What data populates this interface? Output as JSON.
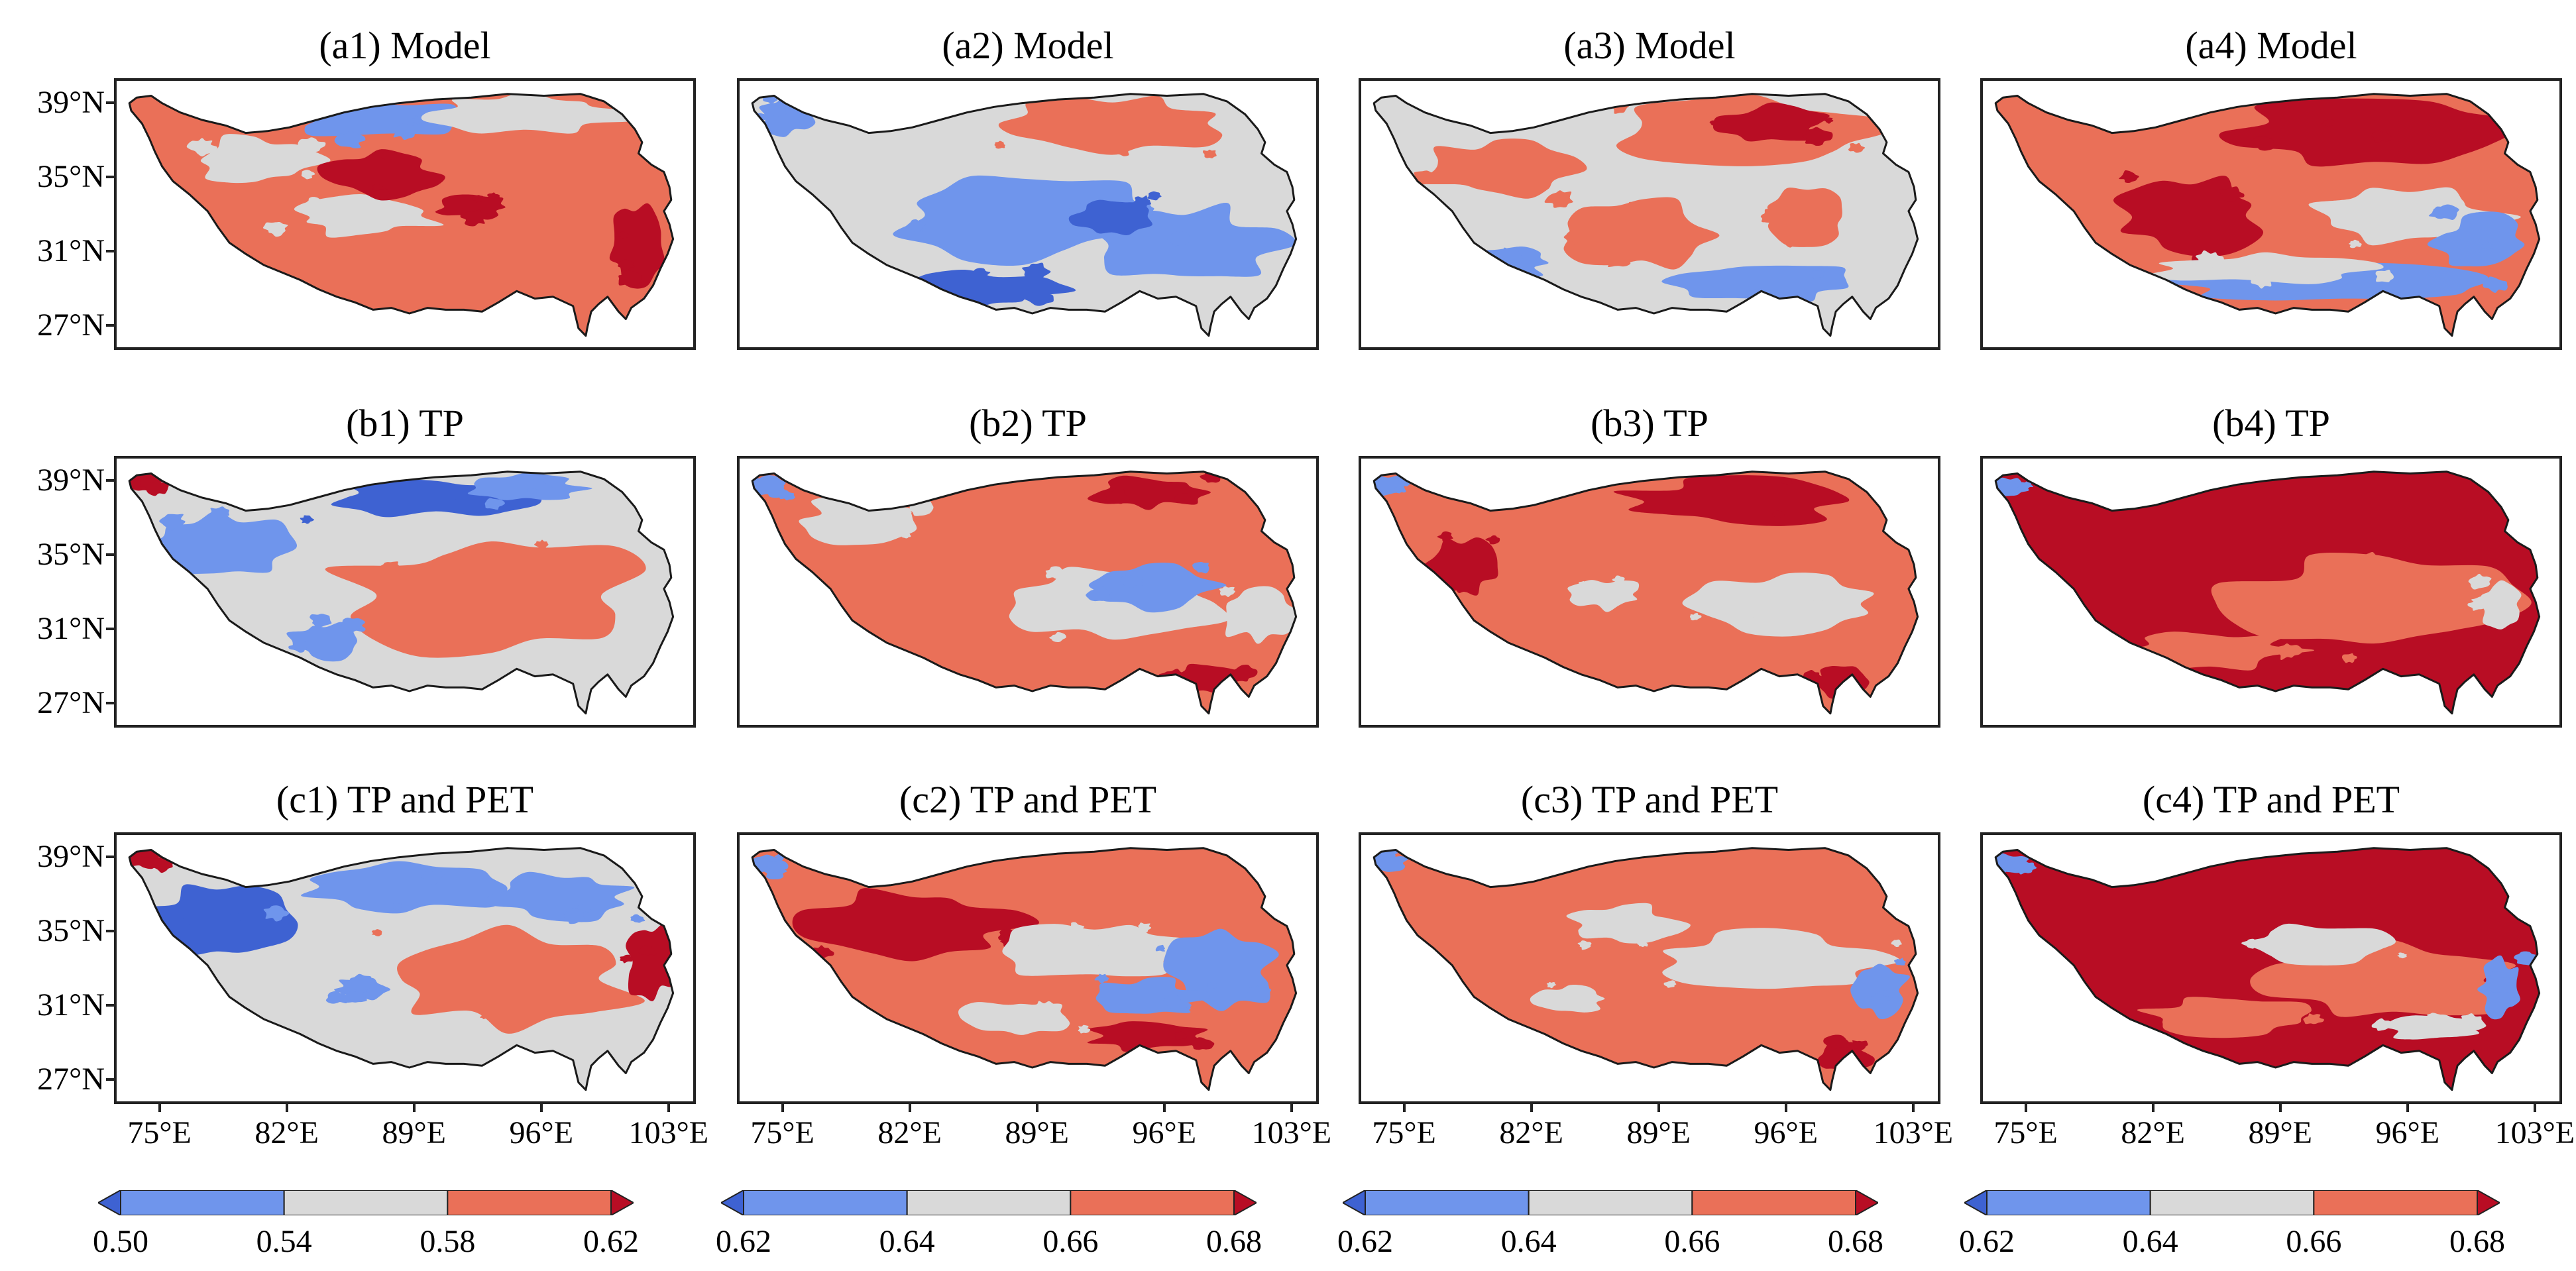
{
  "colors": {
    "class_1": "#3e62d2",
    "class_2": "#6f95ec",
    "class_3": "#d9d9d9",
    "class_4": "#ea7058",
    "class_5": "#b80d24"
  },
  "map_data": {
    "type": "categorical-choropleth",
    "lat_ticks": [
      "39°N",
      "35°N",
      "31°N",
      "27°N"
    ],
    "lon_ticks": [
      "75°E",
      "82°E",
      "89°E",
      "96°E",
      "103°E"
    ],
    "columns": [
      {
        "colorbar": {
          "ticks": [
            "0.50",
            "0.54",
            "0.58",
            "0.62"
          ],
          "extend": "both"
        }
      },
      {
        "colorbar": {
          "ticks": [
            "0.62",
            "0.64",
            "0.66",
            "0.68"
          ],
          "extend": "both"
        }
      },
      {
        "colorbar": {
          "ticks": [
            "0.62",
            "0.64",
            "0.66",
            "0.68"
          ],
          "extend": "both"
        }
      },
      {
        "colorbar": {
          "ticks": [
            "0.62",
            "0.64",
            "0.66",
            "0.68"
          ],
          "extend": "both"
        }
      }
    ],
    "panels": [
      {
        "title": "(a1) Model",
        "base": 4,
        "patches": [
          {
            "c": 2,
            "lon": 87,
            "lat": 38.2,
            "rx": 4.5,
            "ry": 1.0
          },
          {
            "c": 3,
            "lon": 95,
            "lat": 38.6,
            "rx": 5.5,
            "ry": 1.0
          },
          {
            "c": 3,
            "lon": 80,
            "lat": 36.0,
            "rx": 3.5,
            "ry": 1.3
          },
          {
            "c": 3,
            "lon": 86,
            "lat": 33.0,
            "rx": 4.0,
            "ry": 1.0
          },
          {
            "c": 5,
            "lon": 87,
            "lat": 35.2,
            "rx": 3.0,
            "ry": 1.2
          },
          {
            "c": 5,
            "lon": 101,
            "lat": 31.5,
            "rx": 1.5,
            "ry": 2.0
          },
          {
            "c": 5,
            "lon": 92,
            "lat": 33.5,
            "rx": 2.0,
            "ry": 0.6
          }
        ]
      },
      {
        "title": "(a2) Model",
        "base": 3,
        "patches": [
          {
            "c": 4,
            "lon": 93,
            "lat": 38.0,
            "rx": 6.0,
            "ry": 1.5
          },
          {
            "c": 2,
            "lon": 88,
            "lat": 33.0,
            "rx": 7.0,
            "ry": 2.3
          },
          {
            "c": 2,
            "lon": 97,
            "lat": 31.5,
            "rx": 5.0,
            "ry": 2.0
          },
          {
            "c": 1,
            "lon": 85,
            "lat": 29.0,
            "rx": 5.0,
            "ry": 1.0
          },
          {
            "c": 1,
            "lon": 93,
            "lat": 33.0,
            "rx": 2.0,
            "ry": 1.0
          },
          {
            "c": 2,
            "lon": 75,
            "lat": 38.5,
            "rx": 1.5,
            "ry": 1.0
          }
        ]
      },
      {
        "title": "(a3) Model",
        "base": 3,
        "patches": [
          {
            "c": 4,
            "lon": 94,
            "lat": 37.5,
            "rx": 8.0,
            "ry": 1.8
          },
          {
            "c": 5,
            "lon": 95,
            "lat": 38.0,
            "rx": 3.0,
            "ry": 1.0
          },
          {
            "c": 4,
            "lon": 80,
            "lat": 35.5,
            "rx": 4.0,
            "ry": 1.5
          },
          {
            "c": 4,
            "lon": 88,
            "lat": 32.0,
            "rx": 4.0,
            "ry": 1.8
          },
          {
            "c": 4,
            "lon": 97,
            "lat": 33.0,
            "rx": 2.5,
            "ry": 1.5
          },
          {
            "c": 2,
            "lon": 80,
            "lat": 30.5,
            "rx": 3.0,
            "ry": 0.8
          },
          {
            "c": 2,
            "lon": 95,
            "lat": 29.5,
            "rx": 5.0,
            "ry": 1.0
          }
        ]
      },
      {
        "title": "(a4) Model",
        "base": 4,
        "patches": [
          {
            "c": 5,
            "lon": 94,
            "lat": 37.5,
            "rx": 8.0,
            "ry": 1.8
          },
          {
            "c": 5,
            "lon": 84,
            "lat": 33.0,
            "rx": 4.0,
            "ry": 2.0
          },
          {
            "c": 3,
            "lon": 96,
            "lat": 33.0,
            "rx": 5.0,
            "ry": 1.5
          },
          {
            "c": 2,
            "lon": 92,
            "lat": 29.5,
            "rx": 9.0,
            "ry": 1.0
          },
          {
            "c": 3,
            "lon": 88,
            "lat": 30.2,
            "rx": 6.0,
            "ry": 0.8
          },
          {
            "c": 2,
            "lon": 100,
            "lat": 31.5,
            "rx": 2.5,
            "ry": 1.5
          }
        ]
      },
      {
        "title": "(b1) TP",
        "base": 3,
        "patches": [
          {
            "c": 1,
            "lon": 90,
            "lat": 38.2,
            "rx": 6.0,
            "ry": 1.0
          },
          {
            "c": 2,
            "lon": 78,
            "lat": 35.5,
            "rx": 4.0,
            "ry": 1.8
          },
          {
            "c": 2,
            "lon": 95,
            "lat": 38.7,
            "rx": 3.0,
            "ry": 0.7
          },
          {
            "c": 4,
            "lon": 93,
            "lat": 33.0,
            "rx": 8.0,
            "ry": 3.0
          },
          {
            "c": 2,
            "lon": 84,
            "lat": 30.5,
            "rx": 2.0,
            "ry": 1.0
          },
          {
            "c": 5,
            "lon": 74,
            "lat": 39.0,
            "rx": 1.0,
            "ry": 0.5
          }
        ]
      },
      {
        "title": "(b2) TP",
        "base": 4,
        "patches": [
          {
            "c": 3,
            "lon": 79,
            "lat": 37.0,
            "rx": 3.0,
            "ry": 1.2
          },
          {
            "c": 3,
            "lon": 93,
            "lat": 32.5,
            "rx": 6.0,
            "ry": 2.0
          },
          {
            "c": 2,
            "lon": 95,
            "lat": 33.5,
            "rx": 3.5,
            "ry": 1.2
          },
          {
            "c": 5,
            "lon": 95,
            "lat": 38.5,
            "rx": 3.0,
            "ry": 0.8
          },
          {
            "c": 5,
            "lon": 98,
            "lat": 28.5,
            "rx": 2.0,
            "ry": 0.8
          },
          {
            "c": 2,
            "lon": 74,
            "lat": 38.8,
            "rx": 1.0,
            "ry": 0.5
          },
          {
            "c": 3,
            "lon": 101,
            "lat": 32.0,
            "rx": 2.0,
            "ry": 1.5
          }
        ]
      },
      {
        "title": "(b3) TP",
        "base": 4,
        "patches": [
          {
            "c": 5,
            "lon": 93,
            "lat": 38.0,
            "rx": 6.0,
            "ry": 1.2
          },
          {
            "c": 3,
            "lon": 96,
            "lat": 32.5,
            "rx": 5.0,
            "ry": 1.5
          },
          {
            "c": 3,
            "lon": 86,
            "lat": 33.0,
            "rx": 2.0,
            "ry": 0.8
          },
          {
            "c": 5,
            "lon": 78,
            "lat": 34.5,
            "rx": 2.0,
            "ry": 1.5
          },
          {
            "c": 5,
            "lon": 99,
            "lat": 28.3,
            "rx": 1.5,
            "ry": 0.8
          },
          {
            "c": 2,
            "lon": 74,
            "lat": 38.8,
            "rx": 1.0,
            "ry": 0.5
          }
        ]
      },
      {
        "title": "(b4) TP",
        "base": 5,
        "patches": [
          {
            "c": 4,
            "lon": 94,
            "lat": 32.5,
            "rx": 8.0,
            "ry": 2.5
          },
          {
            "c": 4,
            "lon": 85,
            "lat": 30.0,
            "rx": 5.0,
            "ry": 1.0
          },
          {
            "c": 3,
            "lon": 101,
            "lat": 32.5,
            "rx": 1.2,
            "ry": 1.2
          },
          {
            "c": 2,
            "lon": 74,
            "lat": 38.8,
            "rx": 1.0,
            "ry": 0.5
          }
        ]
      },
      {
        "title": "(c1) TP and PET",
        "base": 3,
        "patches": [
          {
            "c": 1,
            "lon": 78,
            "lat": 35.5,
            "rx": 4.0,
            "ry": 2.0
          },
          {
            "c": 2,
            "lon": 88,
            "lat": 37.5,
            "rx": 6.0,
            "ry": 1.3
          },
          {
            "c": 2,
            "lon": 97,
            "lat": 37.0,
            "rx": 4.0,
            "ry": 1.2
          },
          {
            "c": 4,
            "lon": 94,
            "lat": 32.5,
            "rx": 7.0,
            "ry": 2.5
          },
          {
            "c": 5,
            "lon": 102,
            "lat": 33.5,
            "rx": 1.5,
            "ry": 2.0
          },
          {
            "c": 5,
            "lon": 74,
            "lat": 39.0,
            "rx": 1.0,
            "ry": 0.5
          },
          {
            "c": 2,
            "lon": 86,
            "lat": 32.0,
            "rx": 1.5,
            "ry": 0.6
          }
        ]
      },
      {
        "title": "(c2) TP and PET",
        "base": 4,
        "patches": [
          {
            "c": 5,
            "lon": 82,
            "lat": 35.5,
            "rx": 6.0,
            "ry": 1.8
          },
          {
            "c": 3,
            "lon": 92,
            "lat": 34.0,
            "rx": 5.0,
            "ry": 1.5
          },
          {
            "c": 2,
            "lon": 99,
            "lat": 33.0,
            "rx": 3.0,
            "ry": 2.0
          },
          {
            "c": 2,
            "lon": 95,
            "lat": 31.5,
            "rx": 3.0,
            "ry": 1.0
          },
          {
            "c": 5,
            "lon": 95,
            "lat": 29.5,
            "rx": 3.0,
            "ry": 0.8
          },
          {
            "c": 3,
            "lon": 88,
            "lat": 30.5,
            "rx": 3.0,
            "ry": 1.0
          },
          {
            "c": 2,
            "lon": 74,
            "lat": 38.8,
            "rx": 1.0,
            "ry": 0.5
          }
        ]
      },
      {
        "title": "(c3) TP and PET",
        "base": 4,
        "patches": [
          {
            "c": 3,
            "lon": 95,
            "lat": 33.5,
            "rx": 6.0,
            "ry": 1.5
          },
          {
            "c": 3,
            "lon": 87,
            "lat": 35.5,
            "rx": 3.0,
            "ry": 1.0
          },
          {
            "c": 2,
            "lon": 101,
            "lat": 32.0,
            "rx": 1.5,
            "ry": 1.5
          },
          {
            "c": 3,
            "lon": 84,
            "lat": 31.5,
            "rx": 2.0,
            "ry": 0.7
          },
          {
            "c": 5,
            "lon": 99,
            "lat": 28.3,
            "rx": 1.5,
            "ry": 0.8
          },
          {
            "c": 2,
            "lon": 74,
            "lat": 38.8,
            "rx": 1.0,
            "ry": 0.5
          }
        ]
      },
      {
        "title": "(c4) TP and PET",
        "base": 5,
        "patches": [
          {
            "c": 4,
            "lon": 95,
            "lat": 32.5,
            "rx": 7.0,
            "ry": 2.0
          },
          {
            "c": 3,
            "lon": 91,
            "lat": 34.5,
            "rx": 4.0,
            "ry": 1.0
          },
          {
            "c": 2,
            "lon": 101,
            "lat": 32.0,
            "rx": 1.2,
            "ry": 1.5
          },
          {
            "c": 4,
            "lon": 86,
            "lat": 30.5,
            "rx": 5.0,
            "ry": 1.0
          },
          {
            "c": 3,
            "lon": 97,
            "lat": 30.0,
            "rx": 2.5,
            "ry": 0.8
          },
          {
            "c": 2,
            "lon": 74,
            "lat": 38.8,
            "rx": 1.0,
            "ry": 0.5
          }
        ]
      }
    ]
  }
}
